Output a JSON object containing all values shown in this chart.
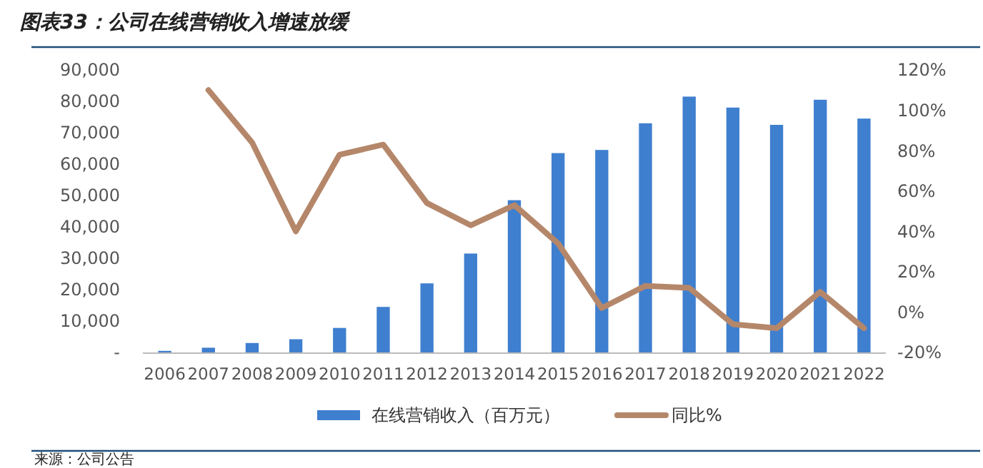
{
  "chart_data": {
    "type": "bar",
    "title": "图表33：公司在线营销收入增速放缓",
    "categories": [
      "2006",
      "2007",
      "2008",
      "2009",
      "2010",
      "2011",
      "2012",
      "2013",
      "2014",
      "2015",
      "2016",
      "2017",
      "2018",
      "2019",
      "2020",
      "2021",
      "2022"
    ],
    "series": [
      {
        "name": "在线营销收入（百万元）",
        "color": "#3f7fcf",
        "values": [
          500,
          1500,
          3000,
          4200,
          7800,
          14500,
          22000,
          31500,
          48500,
          63500,
          64500,
          73000,
          81500,
          78000,
          72500,
          80500,
          74500
        ]
      },
      {
        "name": "同比%",
        "type": "line",
        "axis": "y2",
        "color": "#b5876a",
        "values": [
          null,
          110,
          84,
          40,
          78,
          83,
          54,
          43,
          53,
          34,
          2,
          13,
          12,
          -6,
          -8,
          10,
          -8
        ]
      }
    ],
    "ylim": [
      0,
      90000
    ],
    "yticks": [
      {
        "value": 0,
        "label": "-"
      },
      {
        "value": 10000,
        "label": "10,000"
      },
      {
        "value": 20000,
        "label": "20,000"
      },
      {
        "value": 30000,
        "label": "30,000"
      },
      {
        "value": 40000,
        "label": "40,000"
      },
      {
        "value": 50000,
        "label": "50,000"
      },
      {
        "value": 60000,
        "label": "60,000"
      },
      {
        "value": 70000,
        "label": "70,000"
      },
      {
        "value": 80000,
        "label": "80,000"
      },
      {
        "value": 90000,
        "label": "90,000"
      }
    ],
    "y2lim": [
      -20,
      120
    ],
    "y2ticks": [
      {
        "value": -20,
        "label": "-20%"
      },
      {
        "value": 0,
        "label": "0%"
      },
      {
        "value": 20,
        "label": "20%"
      },
      {
        "value": 40,
        "label": "40%"
      },
      {
        "value": 60,
        "label": "60%"
      },
      {
        "value": 80,
        "label": "80%"
      },
      {
        "value": 100,
        "label": "100%"
      },
      {
        "value": 120,
        "label": "120%"
      }
    ],
    "grid": false,
    "legend": "bottom",
    "annotations": [
      "来源：公司公告"
    ]
  }
}
